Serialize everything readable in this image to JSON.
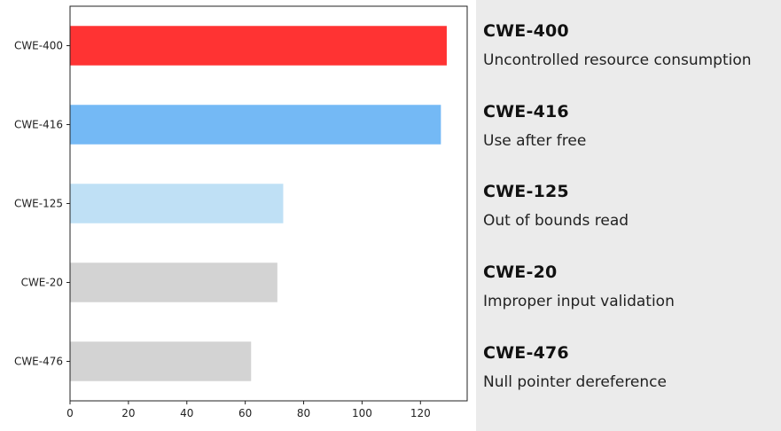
{
  "chart_data": {
    "type": "bar",
    "orientation": "horizontal",
    "categories": [
      "CWE-400",
      "CWE-416",
      "CWE-125",
      "CWE-20",
      "CWE-476"
    ],
    "values": [
      129,
      127,
      73,
      71,
      62
    ],
    "colors": [
      "#ff3333",
      "#74b9f5",
      "#bfe0f5",
      "#d3d3d3",
      "#d3d3d3"
    ],
    "xlim": [
      0,
      136
    ],
    "xticks": [
      0,
      20,
      40,
      60,
      80,
      100,
      120
    ],
    "title": "",
    "xlabel": "",
    "ylabel": "",
    "grid": false
  },
  "legend": {
    "items": [
      {
        "code": "CWE-400",
        "description": "Uncontrolled resource consumption"
      },
      {
        "code": "CWE-416",
        "description": "Use after free"
      },
      {
        "code": "CWE-125",
        "description": "Out of bounds read"
      },
      {
        "code": "CWE-20",
        "description": "Improper input validation"
      },
      {
        "code": "CWE-476",
        "description": "Null pointer dereference"
      }
    ]
  }
}
